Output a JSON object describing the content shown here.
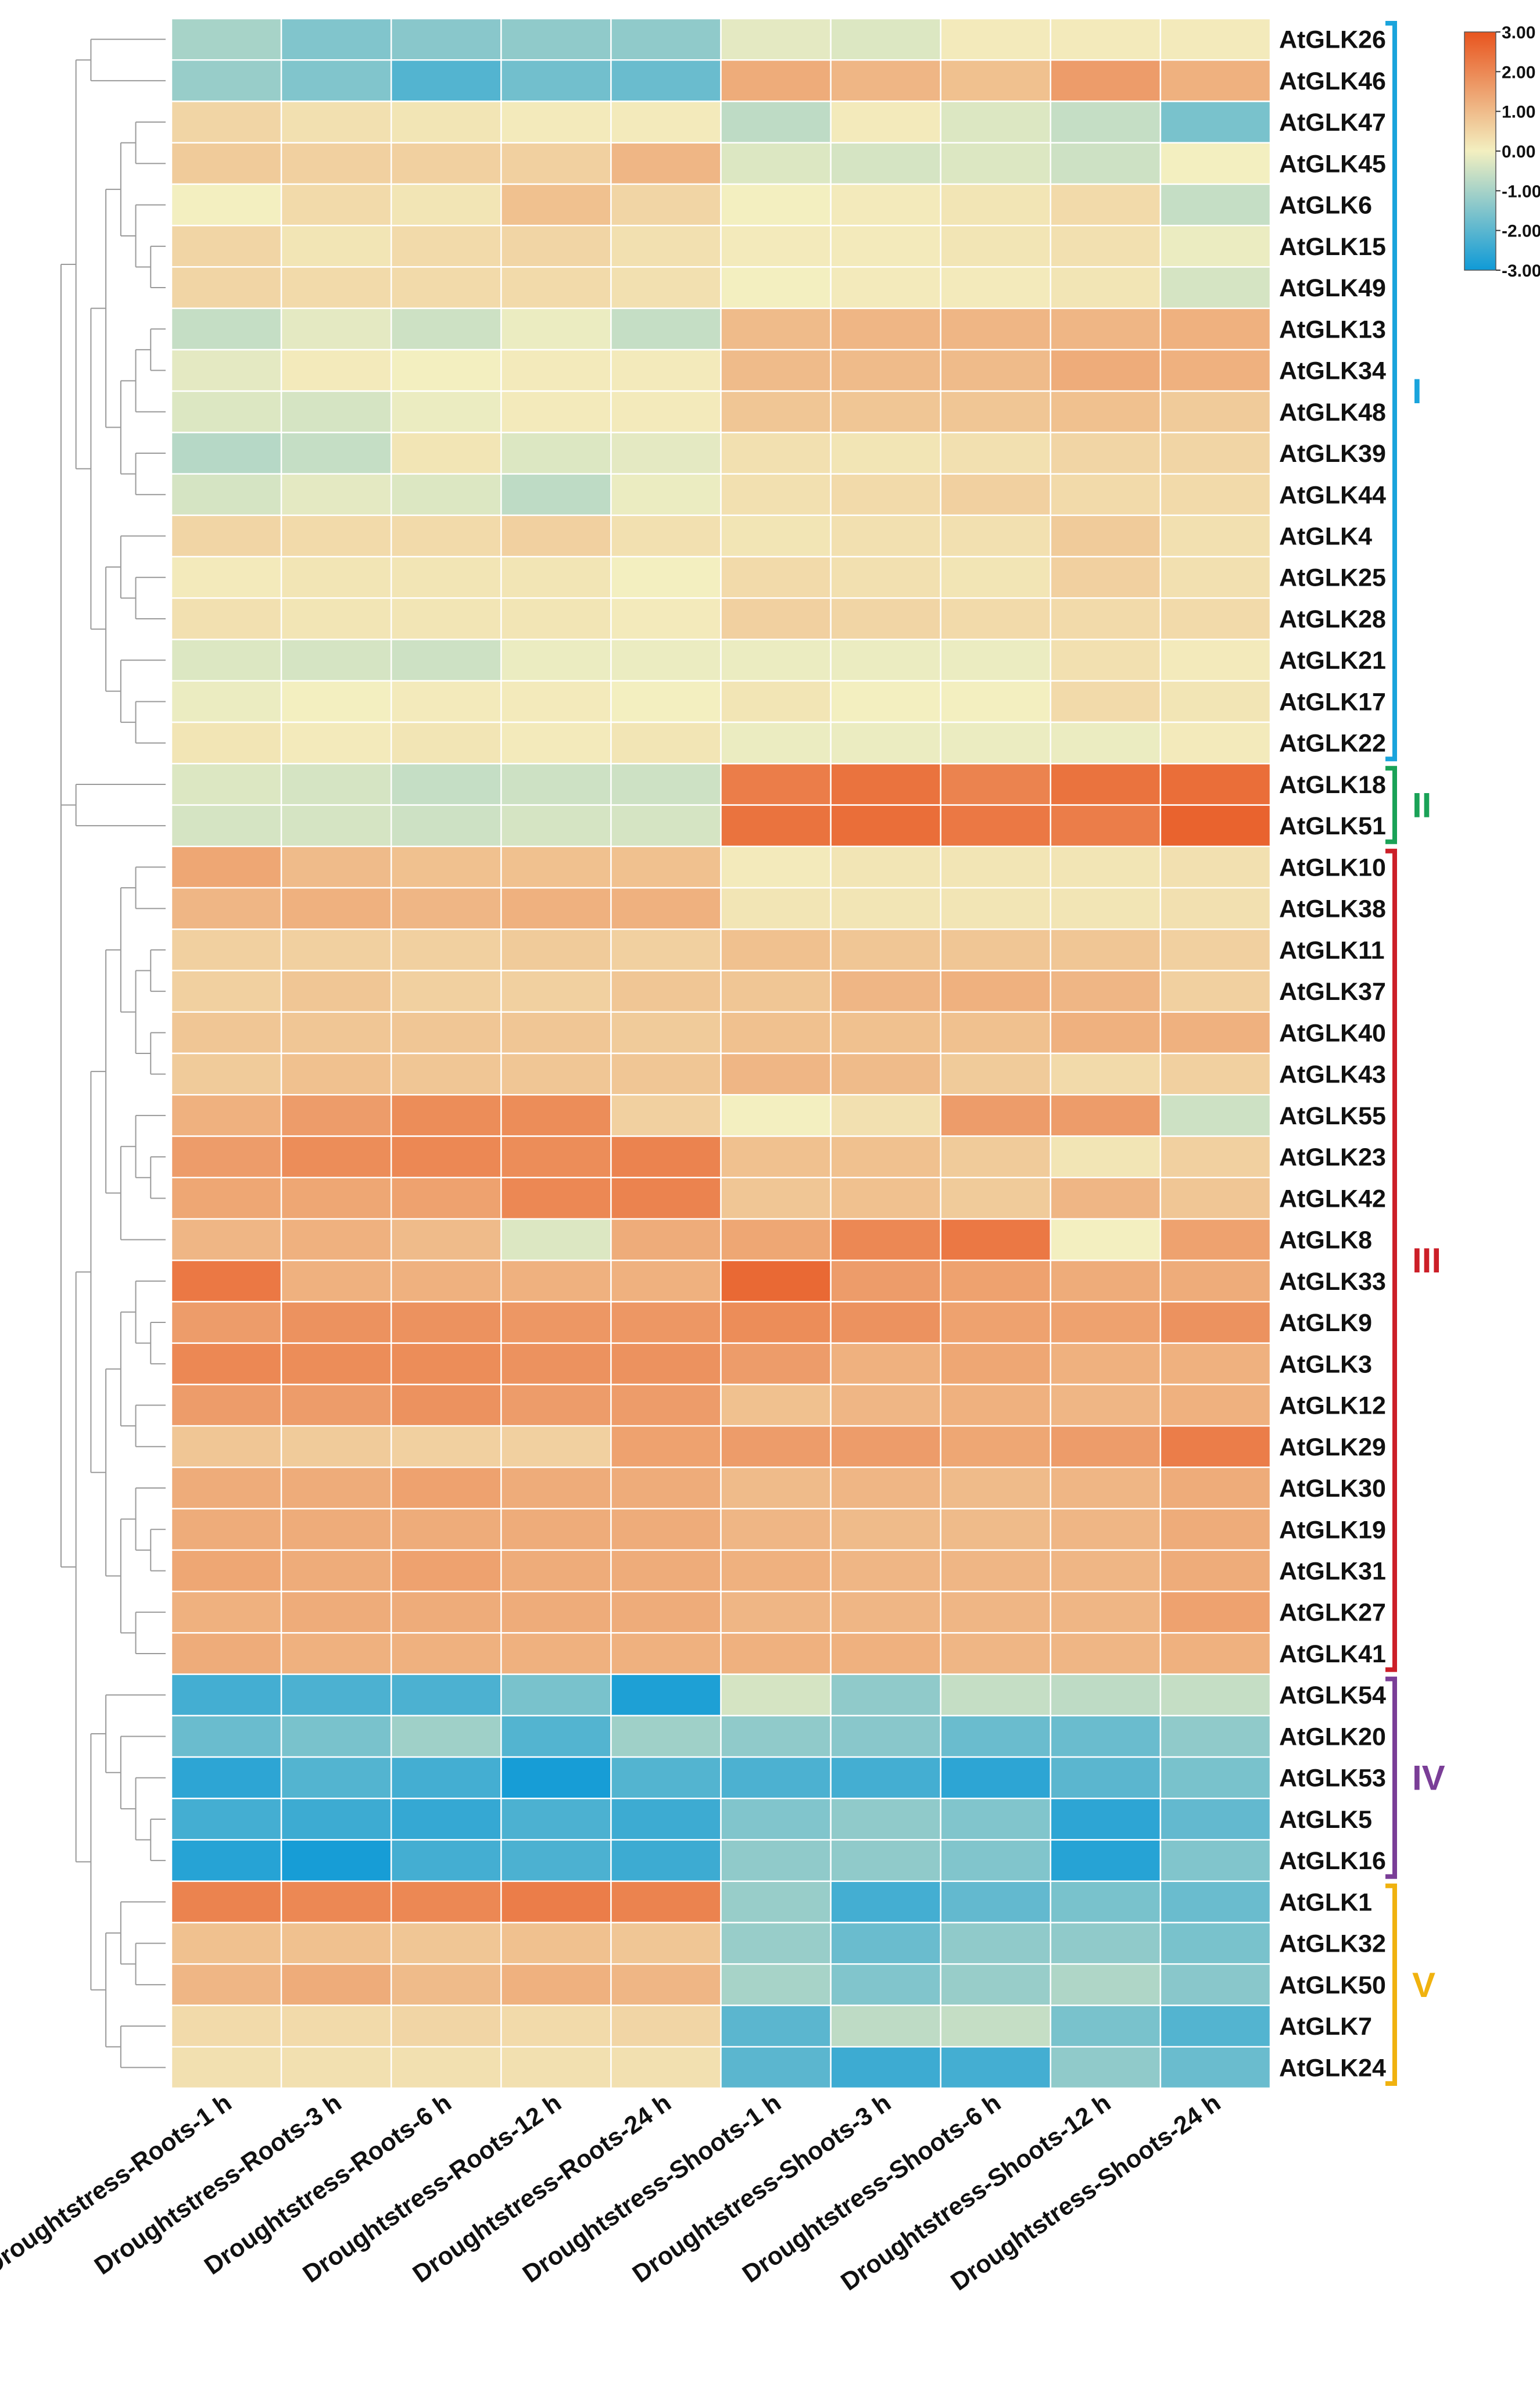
{
  "chart_data": {
    "type": "heatmap",
    "title": "",
    "columns": [
      "Droughtstress-Roots-1 h",
      "Droughtstress-Roots-3 h",
      "Droughtstress-Roots-6 h",
      "Droughtstress-Roots-12 h",
      "Droughtstress-Roots-24 h",
      "Droughtstress-Shoots-1 h",
      "Droughtstress-Shoots-3 h",
      "Droughtstress-Shoots-6 h",
      "Droughtstress-Shoots-12 h",
      "Droughtstress-Shoots-24 h"
    ],
    "rows": [
      "AtGLK26",
      "AtGLK46",
      "AtGLK47",
      "AtGLK45",
      "AtGLK6",
      "AtGLK15",
      "AtGLK49",
      "AtGLK13",
      "AtGLK34",
      "AtGLK48",
      "AtGLK39",
      "AtGLK44",
      "AtGLK4",
      "AtGLK25",
      "AtGLK28",
      "AtGLK21",
      "AtGLK17",
      "AtGLK22",
      "AtGLK18",
      "AtGLK51",
      "AtGLK10",
      "AtGLK38",
      "AtGLK11",
      "AtGLK37",
      "AtGLK40",
      "AtGLK43",
      "AtGLK55",
      "AtGLK23",
      "AtGLK42",
      "AtGLK8",
      "AtGLK33",
      "AtGLK9",
      "AtGLK3",
      "AtGLK12",
      "AtGLK29",
      "AtGLK30",
      "AtGLK19",
      "AtGLK31",
      "AtGLK27",
      "AtGLK41",
      "AtGLK54",
      "AtGLK20",
      "AtGLK53",
      "AtGLK5",
      "AtGLK16",
      "AtGLK1",
      "AtGLK32",
      "AtGLK50",
      "AtGLK7",
      "AtGLK24"
    ],
    "values": [
      [
        -1.0,
        -1.5,
        -1.4,
        -1.3,
        -1.3,
        -0.2,
        -0.3,
        0.1,
        0.1,
        0.1
      ],
      [
        -1.2,
        -1.5,
        -2.1,
        -1.7,
        -1.8,
        1.3,
        1.1,
        0.9,
        1.6,
        1.2
      ],
      [
        0.5,
        0.3,
        0.2,
        0.1,
        0.1,
        -0.7,
        0.1,
        -0.3,
        -0.6,
        -1.6
      ],
      [
        0.7,
        0.6,
        0.6,
        0.6,
        1.1,
        -0.3,
        -0.4,
        -0.3,
        -0.5,
        0.0
      ],
      [
        0.0,
        0.4,
        0.2,
        0.9,
        0.5,
        0.0,
        0.1,
        0.2,
        0.4,
        -0.6
      ],
      [
        0.5,
        0.2,
        0.4,
        0.5,
        0.3,
        0.1,
        0.1,
        0.2,
        0.3,
        -0.1
      ],
      [
        0.5,
        0.4,
        0.4,
        0.4,
        0.3,
        0.0,
        0.1,
        0.1,
        0.2,
        -0.4
      ],
      [
        -0.6,
        -0.2,
        -0.5,
        -0.1,
        -0.6,
        1.0,
        1.1,
        1.1,
        1.1,
        1.2
      ],
      [
        -0.2,
        0.1,
        0.0,
        0.1,
        0.1,
        1.0,
        1.0,
        1.0,
        1.3,
        1.2
      ],
      [
        -0.3,
        -0.4,
        -0.1,
        0.1,
        0.1,
        0.8,
        0.8,
        0.8,
        0.9,
        0.7
      ],
      [
        -0.8,
        -0.6,
        0.2,
        -0.3,
        -0.2,
        0.3,
        0.2,
        0.3,
        0.5,
        0.5
      ],
      [
        -0.4,
        -0.2,
        -0.3,
        -0.7,
        -0.1,
        0.3,
        0.4,
        0.6,
        0.4,
        0.4
      ],
      [
        0.5,
        0.4,
        0.4,
        0.6,
        0.3,
        0.2,
        0.3,
        0.3,
        0.7,
        0.3
      ],
      [
        0.1,
        0.2,
        0.2,
        0.2,
        0.0,
        0.4,
        0.3,
        0.2,
        0.6,
        0.3
      ],
      [
        0.3,
        0.2,
        0.2,
        0.2,
        0.1,
        0.6,
        0.5,
        0.4,
        0.4,
        0.4
      ],
      [
        -0.3,
        -0.4,
        -0.5,
        -0.1,
        -0.1,
        -0.1,
        -0.1,
        -0.1,
        0.3,
        0.1
      ],
      [
        -0.1,
        0.0,
        0.1,
        0.1,
        0.0,
        0.2,
        0.0,
        0.0,
        0.4,
        0.2
      ],
      [
        0.2,
        0.1,
        0.2,
        0.1,
        0.2,
        -0.1,
        -0.1,
        -0.1,
        -0.1,
        0.1
      ],
      [
        -0.3,
        -0.4,
        -0.6,
        -0.5,
        -0.5,
        2.2,
        2.4,
        2.1,
        2.4,
        2.5
      ],
      [
        -0.4,
        -0.4,
        -0.5,
        -0.4,
        -0.4,
        2.4,
        2.5,
        2.3,
        2.2,
        2.7
      ],
      [
        1.4,
        1.0,
        0.9,
        0.9,
        0.9,
        0.1,
        0.2,
        0.2,
        0.2,
        0.3
      ],
      [
        1.1,
        1.2,
        1.1,
        1.2,
        1.2,
        0.2,
        0.2,
        0.2,
        0.2,
        0.3
      ],
      [
        0.6,
        0.6,
        0.6,
        0.7,
        0.6,
        0.9,
        0.8,
        0.8,
        0.8,
        0.6
      ],
      [
        0.6,
        0.8,
        0.6,
        0.6,
        0.8,
        0.8,
        1.1,
        1.2,
        1.1,
        0.6
      ],
      [
        0.8,
        0.8,
        0.8,
        0.8,
        0.7,
        0.9,
        0.9,
        0.9,
        1.2,
        1.2
      ],
      [
        0.7,
        0.9,
        0.8,
        0.8,
        0.8,
        1.1,
        1.0,
        0.7,
        0.4,
        0.6
      ],
      [
        1.2,
        1.6,
        1.9,
        1.9,
        0.6,
        0.0,
        0.3,
        1.6,
        1.6,
        -0.5
      ],
      [
        1.6,
        1.9,
        2.0,
        1.9,
        2.1,
        0.9,
        0.9,
        0.7,
        0.2,
        0.6
      ],
      [
        1.4,
        1.4,
        1.5,
        2.0,
        2.1,
        0.8,
        0.9,
        0.7,
        1.1,
        0.8
      ],
      [
        1.1,
        1.2,
        1.0,
        -0.3,
        1.3,
        1.4,
        2.0,
        2.3,
        0.0,
        1.5
      ],
      [
        2.3,
        1.2,
        1.2,
        1.2,
        1.2,
        2.6,
        1.6,
        1.5,
        1.3,
        1.3
      ],
      [
        1.6,
        1.8,
        1.8,
        1.7,
        1.7,
        1.9,
        1.8,
        1.5,
        1.5,
        1.8
      ],
      [
        2.0,
        1.9,
        1.9,
        1.8,
        1.8,
        1.6,
        1.2,
        1.4,
        1.2,
        1.2
      ],
      [
        1.6,
        1.6,
        1.8,
        1.6,
        1.6,
        0.9,
        1.1,
        1.2,
        1.1,
        1.2
      ],
      [
        0.8,
        0.7,
        0.6,
        0.6,
        1.5,
        1.6,
        1.6,
        1.4,
        1.6,
        2.2
      ],
      [
        1.3,
        1.3,
        1.5,
        1.3,
        1.3,
        1.0,
        1.1,
        1.0,
        1.1,
        1.3
      ],
      [
        1.3,
        1.3,
        1.3,
        1.3,
        1.3,
        1.1,
        1.0,
        1.0,
        1.1,
        1.3
      ],
      [
        1.4,
        1.3,
        1.5,
        1.3,
        1.3,
        1.2,
        1.1,
        1.1,
        1.1,
        1.3
      ],
      [
        1.2,
        1.3,
        1.3,
        1.3,
        1.3,
        1.1,
        1.1,
        1.1,
        1.1,
        1.5
      ],
      [
        1.3,
        1.2,
        1.2,
        1.2,
        1.2,
        1.2,
        1.2,
        1.1,
        1.1,
        1.2
      ],
      [
        -2.3,
        -2.2,
        -2.2,
        -1.6,
        -2.8,
        -0.4,
        -1.3,
        -0.6,
        -0.7,
        -0.6
      ],
      [
        -1.8,
        -1.6,
        -1.1,
        -2.1,
        -1.1,
        -1.3,
        -1.4,
        -1.8,
        -1.8,
        -1.3
      ],
      [
        -2.6,
        -2.1,
        -2.3,
        -2.9,
        -2.1,
        -2.2,
        -2.3,
        -2.6,
        -2.0,
        -1.6
      ],
      [
        -2.3,
        -2.4,
        -2.5,
        -2.2,
        -2.4,
        -1.5,
        -1.3,
        -1.5,
        -2.6,
        -1.9
      ],
      [
        -2.7,
        -2.9,
        -2.3,
        -2.2,
        -2.4,
        -1.3,
        -1.3,
        -1.5,
        -2.7,
        -1.5
      ],
      [
        2.1,
        2.0,
        2.0,
        2.2,
        2.1,
        -1.2,
        -2.3,
        -1.9,
        -1.6,
        -1.8
      ],
      [
        0.9,
        0.9,
        0.8,
        0.9,
        0.8,
        -1.2,
        -1.8,
        -1.3,
        -1.3,
        -1.6
      ],
      [
        1.1,
        1.3,
        1.0,
        1.2,
        1.1,
        -1.0,
        -1.5,
        -1.2,
        -0.9,
        -1.4
      ],
      [
        0.4,
        0.4,
        0.5,
        0.4,
        0.5,
        -2.0,
        -0.7,
        -0.6,
        -1.6,
        -2.1
      ],
      [
        0.3,
        0.3,
        0.3,
        0.3,
        0.3,
        -2.0,
        -2.4,
        -2.3,
        -1.3,
        -1.8
      ]
    ],
    "color_scale": {
      "min": -3.0,
      "max": 3.0,
      "ticks": [
        "3.00",
        "2.00",
        "1.00",
        "0.00",
        "-1.00",
        "-2.00",
        "-3.00"
      ],
      "colors": {
        "low": "#0f9ad7",
        "mid": "#f3efc0",
        "high": "#e8541e"
      }
    },
    "groups": [
      {
        "label": "I",
        "color": "#1aa4dc",
        "row_start": 0,
        "row_end": 17
      },
      {
        "label": "II",
        "color": "#1aa257",
        "row_start": 18,
        "row_end": 19
      },
      {
        "label": "III",
        "color": "#cc1f28",
        "row_start": 20,
        "row_end": 39
      },
      {
        "label": "IV",
        "color": "#7a3e97",
        "row_start": 40,
        "row_end": 44
      },
      {
        "label": "V",
        "color": "#f0b20f",
        "row_start": 45,
        "row_end": 49
      }
    ],
    "row_dendrogram": true,
    "grid": true,
    "legend_position": "top-right"
  }
}
